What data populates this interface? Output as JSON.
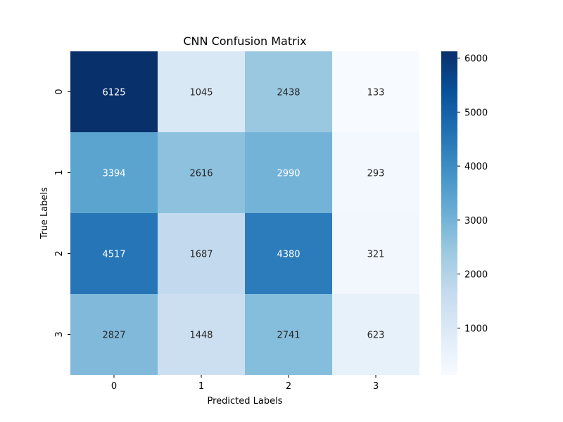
{
  "chart_data": {
    "type": "heatmap",
    "title": "CNN Confusion Matrix",
    "xlabel": "Predicted Labels",
    "ylabel": "True Labels",
    "x_categories": [
      "0",
      "1",
      "2",
      "3"
    ],
    "y_categories": [
      "0",
      "1",
      "2",
      "3"
    ],
    "values": [
      [
        6125,
        1045,
        2438,
        133
      ],
      [
        3394,
        2616,
        2990,
        293
      ],
      [
        4517,
        1687,
        4380,
        321
      ],
      [
        2827,
        1448,
        2741,
        623
      ]
    ],
    "colorbar": {
      "min": 133,
      "max": 6125,
      "ticks": [
        "1000",
        "2000",
        "3000",
        "4000",
        "5000",
        "6000"
      ],
      "colormap": "Blues"
    },
    "annotation_colors": {
      "dark": "#262626",
      "light": "#ffffff"
    }
  }
}
